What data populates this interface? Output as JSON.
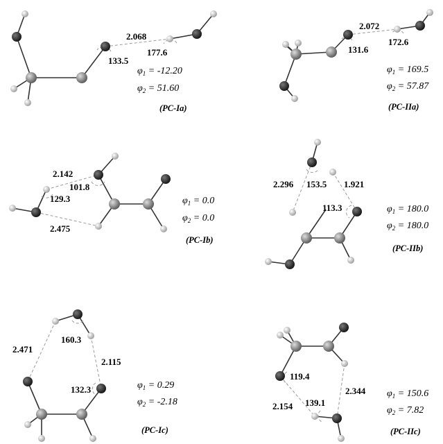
{
  "panels": [
    {
      "label": "(PC-Ia)",
      "phi1": "-12.20",
      "phi2": "51.60",
      "values": [
        "2.068",
        "133.5",
        "177.6"
      ]
    },
    {
      "label": "(PC-IIa)",
      "phi1": "169.5",
      "phi2": "57.87",
      "values": [
        "2.072",
        "131.6",
        "172.6"
      ]
    },
    {
      "label": "(PC-Ib)",
      "phi1": "0.0",
      "phi2": "0.0",
      "values": [
        "2.142",
        "101.8",
        "129.3",
        "2.475"
      ]
    },
    {
      "label": "(PC-IIb)",
      "phi1": "180.0",
      "phi2": "180.0",
      "values": [
        "2.296",
        "153.5",
        "1.921",
        "113.3"
      ]
    },
    {
      "label": "(PC-Ic)",
      "phi1": "0.29",
      "phi2": "-2.18",
      "values": [
        "2.471",
        "160.3",
        "2.115",
        "132.3"
      ]
    },
    {
      "label": "(PC-IIc)",
      "phi1": "150.6",
      "phi2": "7.82",
      "values": [
        "119.4",
        "2.344",
        "2.154",
        "139.1"
      ]
    }
  ],
  "colors": {
    "oxygen": "#1a1a1a",
    "carbon": "#7a7a7a",
    "hydrogen": "#e0e0e0"
  }
}
